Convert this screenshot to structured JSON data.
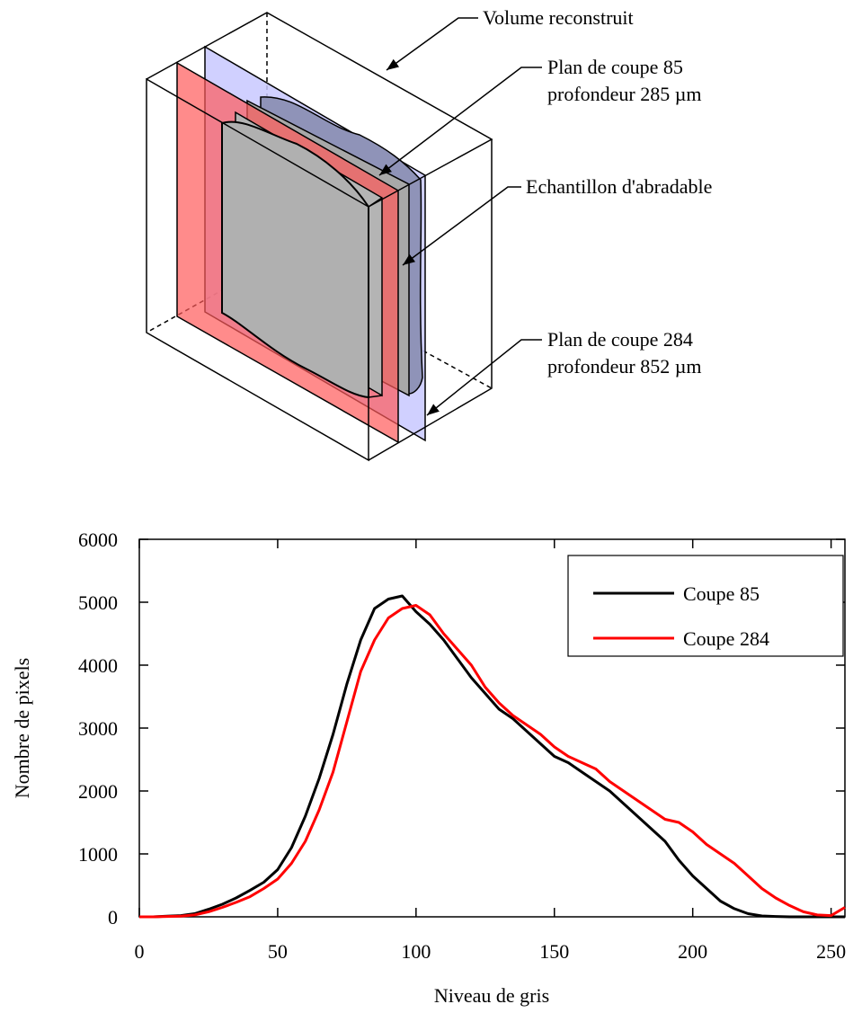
{
  "diagram": {
    "labels": [
      "Volume reconstruit",
      "Plan de coupe 85",
      "profondeur 285 µm",
      "Echantillon d'abradable",
      "Plan de coupe 284",
      "profondeur 852 µm"
    ]
  },
  "chart_data": {
    "type": "line",
    "xlabel": "Niveau de gris",
    "ylabel": "Nombre de pixels",
    "x": [
      0,
      5,
      10,
      15,
      20,
      25,
      30,
      35,
      40,
      45,
      50,
      55,
      60,
      65,
      70,
      75,
      80,
      85,
      90,
      95,
      100,
      105,
      110,
      115,
      120,
      125,
      130,
      135,
      140,
      145,
      150,
      155,
      160,
      165,
      170,
      175,
      180,
      185,
      190,
      195,
      200,
      205,
      210,
      215,
      220,
      225,
      230,
      235,
      240,
      245,
      250,
      255
    ],
    "series": [
      {
        "name": "Coupe 85",
        "color": "#000000",
        "values": [
          0,
          0,
          10,
          20,
          50,
          120,
          200,
          300,
          420,
          550,
          750,
          1100,
          1600,
          2200,
          2900,
          3700,
          4400,
          4900,
          5050,
          5100,
          4850,
          4650,
          4400,
          4100,
          3800,
          3550,
          3300,
          3150,
          2950,
          2750,
          2550,
          2450,
          2300,
          2150,
          2000,
          1800,
          1600,
          1400,
          1200,
          900,
          650,
          450,
          250,
          130,
          50,
          15,
          5,
          0,
          0,
          0,
          0,
          0
        ]
      },
      {
        "name": "Coupe 284",
        "color": "#ff0000",
        "values": [
          0,
          0,
          5,
          10,
          30,
          80,
          150,
          230,
          320,
          450,
          600,
          850,
          1200,
          1700,
          2300,
          3100,
          3900,
          4400,
          4750,
          4900,
          4950,
          4800,
          4500,
          4250,
          4000,
          3650,
          3400,
          3200,
          3050,
          2900,
          2700,
          2550,
          2450,
          2350,
          2150,
          2000,
          1850,
          1700,
          1550,
          1500,
          1350,
          1150,
          1000,
          850,
          650,
          450,
          300,
          180,
          80,
          30,
          20,
          150
        ]
      }
    ],
    "xlim": [
      0,
      255
    ],
    "ylim": [
      0,
      6000
    ],
    "xticks": [
      0,
      50,
      100,
      150,
      200,
      250
    ],
    "yticks": [
      0,
      1000,
      2000,
      3000,
      4000,
      5000,
      6000
    ],
    "legend": "upper right"
  }
}
